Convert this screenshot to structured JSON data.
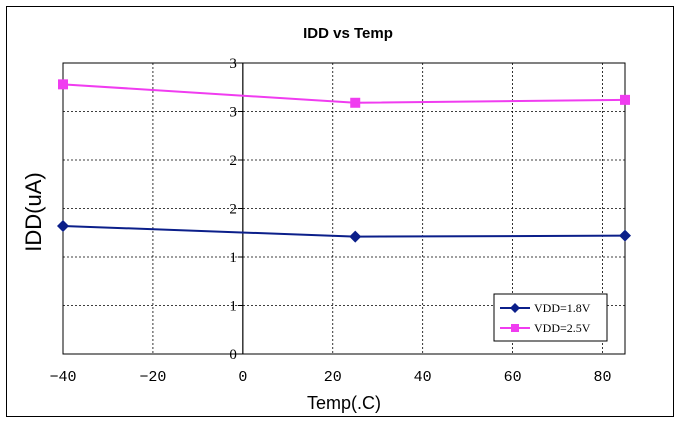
{
  "chart_data": {
    "type": "line",
    "title": "IDD vs Temp",
    "xlabel": "Temp(.C)",
    "ylabel": "IDD(uA)",
    "xlim": [
      -40,
      85
    ],
    "ylim": [
      0,
      3
    ],
    "x_ticks": [
      "-40",
      "-20",
      "0",
      "20",
      "40",
      "60",
      "80"
    ],
    "y_ticks": [
      "0",
      "1",
      "1",
      "2",
      "2",
      "3",
      "3"
    ],
    "grid": true,
    "legend_position": "bottom-right",
    "series": [
      {
        "name": "VDD=1.8V",
        "color": "#0b1f8a",
        "marker": "diamond",
        "x": [
          -40,
          25,
          85
        ],
        "y": [
          1.32,
          1.21,
          1.22
        ]
      },
      {
        "name": "VDD=2.5V",
        "color": "#f03cf0",
        "marker": "square",
        "x": [
          -40,
          25,
          85
        ],
        "y": [
          2.78,
          2.59,
          2.62
        ]
      }
    ]
  }
}
